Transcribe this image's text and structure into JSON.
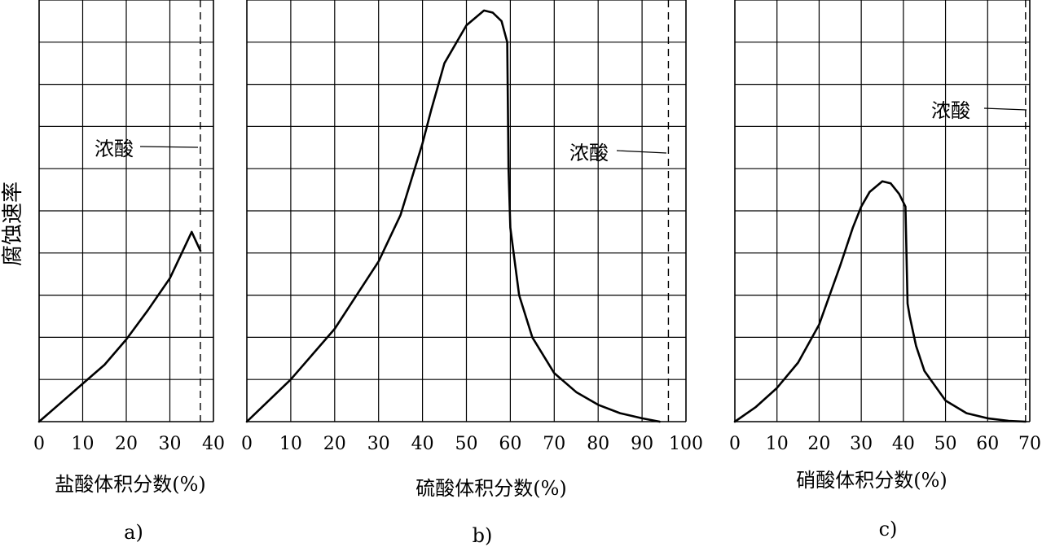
{
  "figure": {
    "ylabel": "腐蚀速率"
  },
  "chart_data": [
    {
      "id": "a",
      "type": "line",
      "panel_label": "a)",
      "xlabel": "盐酸体积分数(%)",
      "ylabel": "腐蚀速率",
      "xlim": [
        0,
        40
      ],
      "xticks": [
        0,
        10,
        20,
        30,
        40
      ],
      "ylim": [
        0,
        10
      ],
      "grid": true,
      "annotation": {
        "text": "浓酸",
        "x": 37,
        "y": 6.8
      },
      "reference_line": {
        "x": 37,
        "style": "dashed"
      },
      "series": [
        {
          "x": [
            0,
            5,
            10,
            15,
            20,
            25,
            30,
            35,
            37
          ],
          "y": [
            0,
            0.45,
            0.9,
            1.35,
            1.95,
            2.65,
            3.4,
            4.5,
            4.05
          ]
        }
      ]
    },
    {
      "id": "b",
      "type": "line",
      "panel_label": "b)",
      "xlabel": "硫酸体积分数(%)",
      "ylabel": "腐蚀速率",
      "xlim": [
        0,
        100
      ],
      "xticks": [
        0,
        10,
        20,
        30,
        40,
        50,
        60,
        70,
        80,
        90,
        100
      ],
      "ylim": [
        0,
        10
      ],
      "grid": true,
      "annotation": {
        "text": "浓酸",
        "x": 96,
        "y": 6.75
      },
      "reference_line": {
        "x": 96,
        "style": "dashed"
      },
      "series": [
        {
          "x": [
            0,
            10,
            20,
            30,
            35,
            40,
            42,
            45,
            50,
            54,
            56,
            58,
            59.3,
            59.6,
            60,
            62,
            65,
            70,
            75,
            80,
            85,
            90,
            94
          ],
          "y": [
            0,
            1.0,
            2.2,
            3.8,
            4.9,
            6.6,
            7.4,
            8.5,
            9.4,
            9.75,
            9.7,
            9.5,
            9.0,
            6.0,
            4.6,
            3.0,
            2.0,
            1.15,
            0.7,
            0.4,
            0.2,
            0.08,
            0.0
          ]
        }
      ]
    },
    {
      "id": "c",
      "type": "line",
      "panel_label": "c)",
      "xlabel": "硝酸体积分数(%)",
      "ylabel": "腐蚀速率",
      "xlim": [
        0,
        70
      ],
      "xticks": [
        0,
        10,
        20,
        30,
        40,
        50,
        60,
        70
      ],
      "ylim": [
        0,
        10
      ],
      "grid": true,
      "annotation": {
        "text": "浓酸",
        "x": 69,
        "y": 7.8
      },
      "reference_line": {
        "x": 69,
        "style": "dashed"
      },
      "series": [
        {
          "x": [
            0,
            5,
            10,
            15,
            20,
            25,
            28,
            30,
            32,
            35,
            37,
            39,
            40.5,
            41,
            41.5,
            43,
            45,
            50,
            55,
            60,
            65,
            69
          ],
          "y": [
            0,
            0.35,
            0.8,
            1.4,
            2.3,
            3.7,
            4.6,
            5.1,
            5.45,
            5.7,
            5.65,
            5.4,
            5.1,
            2.8,
            2.5,
            1.8,
            1.2,
            0.5,
            0.2,
            0.08,
            0.02,
            0.0
          ]
        }
      ]
    }
  ]
}
